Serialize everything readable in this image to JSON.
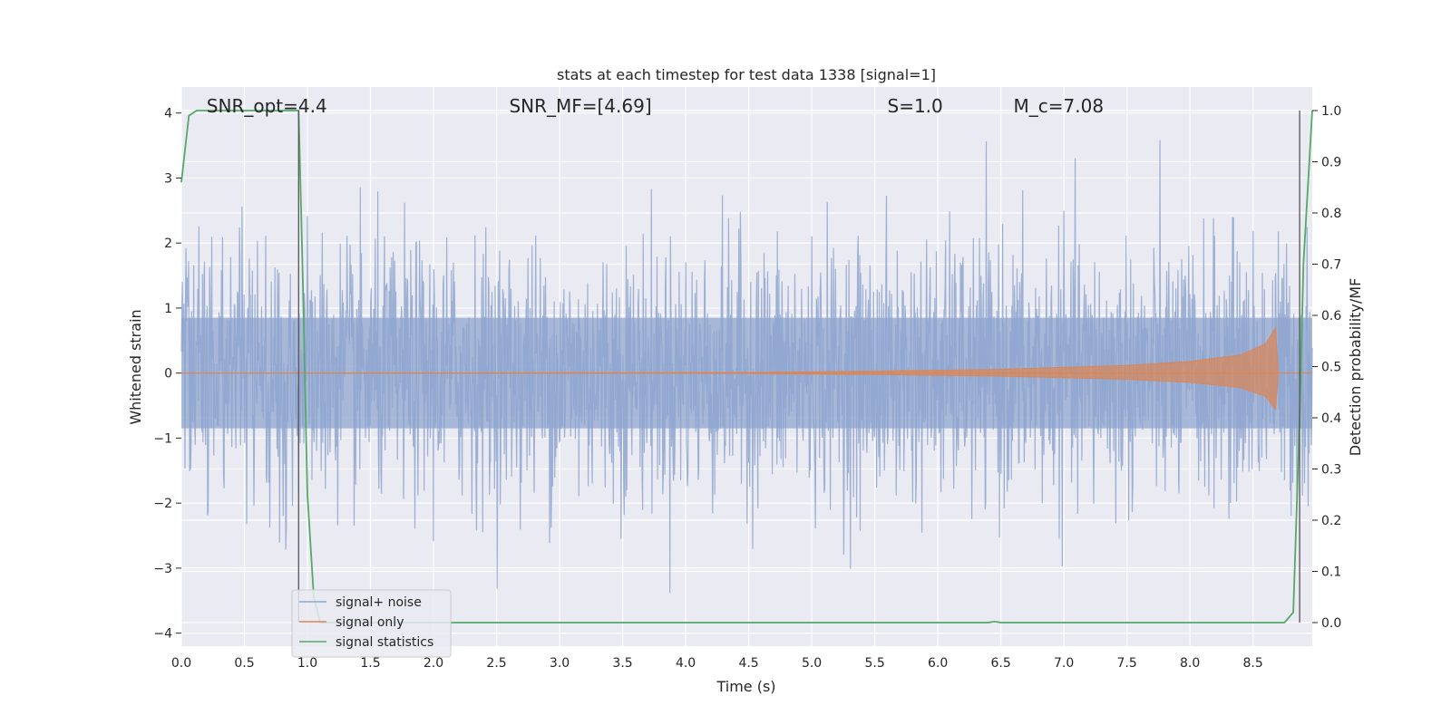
{
  "chart_data": {
    "type": "line",
    "title": "stats at each timestep for test data 1338 [signal=1]",
    "xlabel": "Time (s)",
    "ylabel": "Whitened strain",
    "y2label": "Detection probability/MF",
    "xlim": [
      0.0,
      8.97
    ],
    "ylim": [
      -4.2,
      4.4
    ],
    "y2lim": [
      -0.046,
      1.046
    ],
    "x_ticks": [
      0.0,
      0.5,
      1.0,
      1.5,
      2.0,
      2.5,
      3.0,
      3.5,
      4.0,
      4.5,
      5.0,
      5.5,
      6.0,
      6.5,
      7.0,
      7.5,
      8.0,
      8.5
    ],
    "x_tick_labels": [
      "0.0",
      "0.5",
      "1.0",
      "1.5",
      "2.0",
      "2.5",
      "3.0",
      "3.5",
      "4.0",
      "4.5",
      "5.0",
      "5.5",
      "6.0",
      "6.5",
      "7.0",
      "7.5",
      "8.0",
      "8.5"
    ],
    "y_ticks": [
      -4,
      -3,
      -2,
      -1,
      0,
      1,
      2,
      3,
      4
    ],
    "y_tick_labels": [
      "−4",
      "−3",
      "−2",
      "−1",
      "0",
      "1",
      "2",
      "3",
      "4"
    ],
    "y2_ticks": [
      0.0,
      0.1,
      0.2,
      0.3,
      0.4,
      0.5,
      0.6,
      0.7,
      0.8,
      0.9,
      1.0
    ],
    "y2_tick_labels": [
      "0.0",
      "0.1",
      "0.2",
      "0.3",
      "0.4",
      "0.5",
      "0.6",
      "0.7",
      "0.8",
      "0.9",
      "1.0"
    ],
    "grid": true,
    "legend_position": "lower-left",
    "annotations": [
      {
        "text": "SNR_opt=4.4",
        "x": 0.2
      },
      {
        "text": "SNR_MF=[4.69]",
        "x": 2.6
      },
      {
        "text": "S=1.0",
        "x": 5.6
      },
      {
        "text": "M_c=7.08",
        "x": 6.6
      }
    ],
    "vlines": [
      0.93,
      8.87
    ],
    "series": [
      {
        "name": "signal+ noise",
        "color": "#8fa6cf",
        "kind": "noise",
        "x_range": [
          0.0,
          8.97
        ],
        "envelope": "approx. gaussian, std ~1, peaks ~±3.5"
      },
      {
        "name": "signal only",
        "color": "#dd8452",
        "kind": "chirp",
        "points": [
          [
            0.0,
            0.0
          ],
          [
            4.5,
            0.01
          ],
          [
            5.5,
            0.03
          ],
          [
            6.5,
            0.06
          ],
          [
            7.5,
            0.12
          ],
          [
            8.0,
            0.18
          ],
          [
            8.4,
            0.28
          ],
          [
            8.6,
            0.45
          ],
          [
            8.68,
            0.7
          ],
          [
            8.7,
            0.0
          ]
        ]
      },
      {
        "name": "signal statistics",
        "color": "#55a868",
        "axis": "right",
        "x": [
          0.0,
          0.06,
          0.12,
          0.2,
          0.5,
          0.9,
          0.93,
          0.96,
          1.0,
          1.05,
          1.1,
          2.0,
          4.0,
          6.0,
          6.3,
          6.4,
          6.45,
          6.5,
          8.0,
          8.6,
          8.75,
          8.82,
          8.87,
          8.9,
          8.97
        ],
        "values": [
          0.86,
          0.99,
          1.0,
          1.0,
          1.0,
          1.0,
          1.0,
          0.7,
          0.25,
          0.05,
          0.0,
          0.0,
          0.0,
          0.0,
          0.0,
          0.0,
          0.002,
          0.0,
          0.0,
          0.0,
          0.0,
          0.02,
          0.4,
          0.7,
          1.0
        ]
      }
    ]
  }
}
